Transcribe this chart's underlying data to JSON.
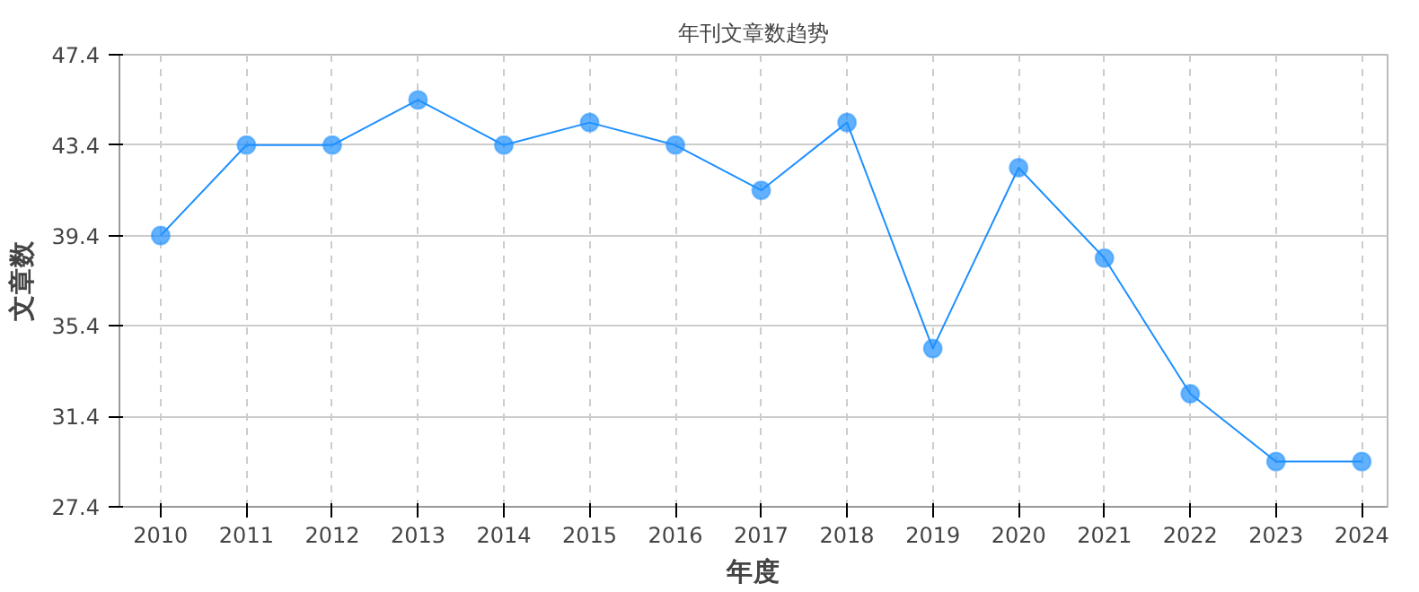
{
  "chart_data": {
    "type": "line",
    "title": "年刊文章数趋势",
    "xlabel": "年度",
    "ylabel": "文章数",
    "categories": [
      "2010",
      "2011",
      "2012",
      "2013",
      "2014",
      "2015",
      "2016",
      "2017",
      "2018",
      "2019",
      "2020",
      "2021",
      "2022",
      "2023",
      "2024"
    ],
    "series": [
      {
        "color": "#1e90ff",
        "values": [
          39.4,
          43.4,
          43.4,
          45.4,
          43.4,
          44.4,
          43.4,
          41.4,
          44.4,
          34.4,
          42.4,
          38.4,
          32.4,
          29.4,
          29.4
        ]
      }
    ],
    "ylim": [
      27.4,
      47.4
    ],
    "yticks": [
      27.4,
      31.4,
      35.4,
      39.4,
      43.4,
      47.4
    ],
    "grid": true,
    "marker": "circle"
  }
}
